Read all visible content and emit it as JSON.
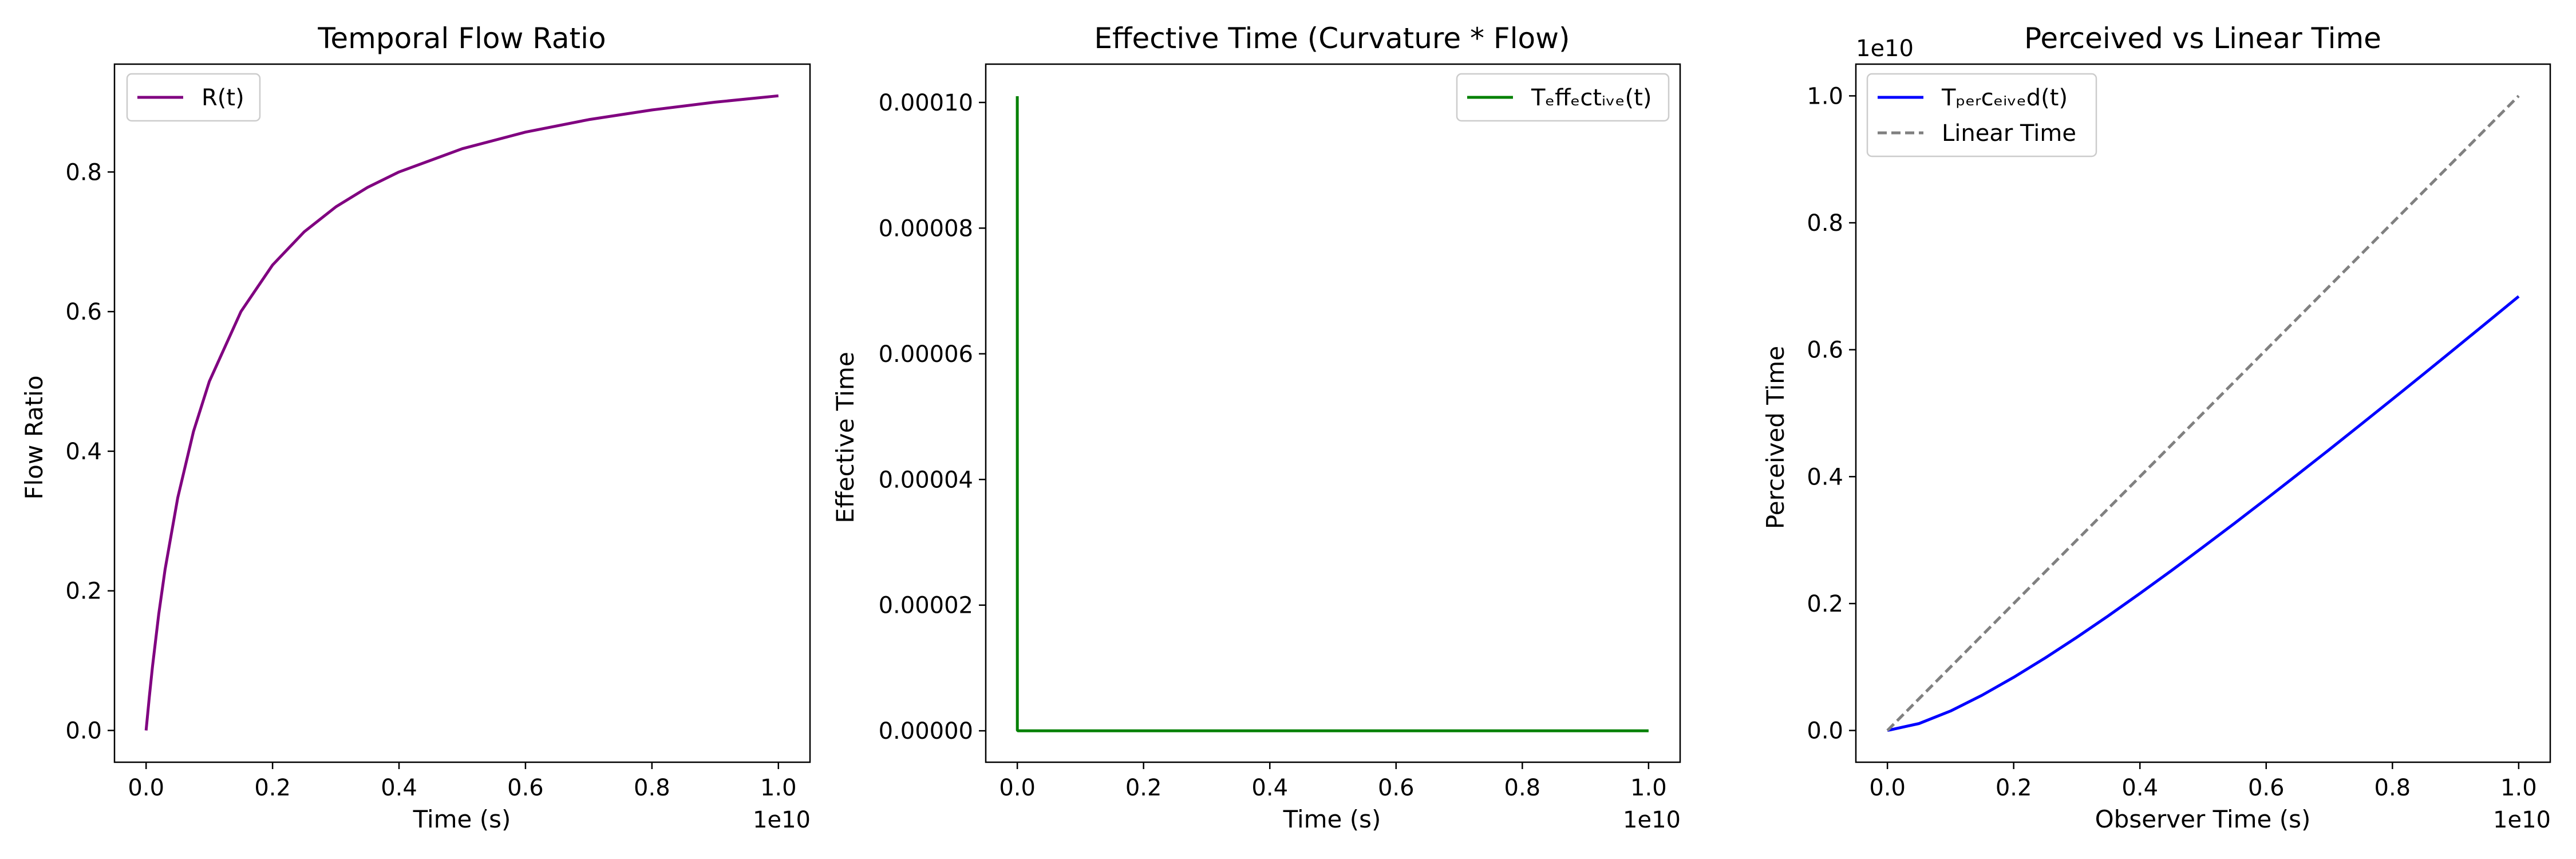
{
  "chart_data": [
    {
      "type": "line",
      "title": "Temporal Flow Ratio",
      "xlabel": "Time (s)",
      "ylabel": "Flow Ratio",
      "x_offset_label": "1e10",
      "y_offset_label": "",
      "xlim": [
        -0.05,
        1.05
      ],
      "ylim": [
        -0.0455,
        0.9545
      ],
      "xticks": [
        0.0,
        0.2,
        0.4,
        0.6,
        0.8,
        1.0
      ],
      "xtick_labels": [
        "0.0",
        "0.2",
        "0.4",
        "0.6",
        "0.8",
        "1.0"
      ],
      "yticks": [
        0.0,
        0.2,
        0.4,
        0.6,
        0.8
      ],
      "ytick_labels": [
        "0.0",
        "0.2",
        "0.4",
        "0.6",
        "0.8"
      ],
      "legend_position": "upper left",
      "series": [
        {
          "name": "R(t)",
          "color": "#800080",
          "dash": "",
          "x": [
            0.0,
            0.005,
            0.01,
            0.02,
            0.03,
            0.05,
            0.075,
            0.1,
            0.15,
            0.2,
            0.25,
            0.3,
            0.35,
            0.4,
            0.5,
            0.6,
            0.7,
            0.8,
            0.9,
            1.0
          ],
          "y": [
            0.0,
            0.0476,
            0.0909,
            0.1667,
            0.2308,
            0.3333,
            0.4286,
            0.5,
            0.6,
            0.6667,
            0.7143,
            0.75,
            0.7778,
            0.8,
            0.8333,
            0.8571,
            0.875,
            0.8889,
            0.9,
            0.9091
          ]
        }
      ]
    },
    {
      "type": "line",
      "title": "Effective Time (Curvature * Flow)",
      "xlabel": "Time (s)",
      "ylabel": "Effective Time",
      "x_offset_label": "1e10",
      "y_offset_label": "",
      "xlim": [
        -0.05,
        1.05
      ],
      "ylim": [
        -5e-06,
        0.0001061
      ],
      "xticks": [
        0.0,
        0.2,
        0.4,
        0.6,
        0.8,
        1.0
      ],
      "xtick_labels": [
        "0.0",
        "0.2",
        "0.4",
        "0.6",
        "0.8",
        "1.0"
      ],
      "yticks": [
        0.0,
        2e-05,
        4e-05,
        6e-05,
        8e-05,
        0.0001
      ],
      "ytick_labels": [
        "0.00000",
        "0.00002",
        "0.00004",
        "0.00006",
        "0.00008",
        "0.00010"
      ],
      "legend_position": "upper right",
      "series": [
        {
          "name": "Tₑffₑctᵢᵥₑ(t)",
          "color": "#008000",
          "dash": "",
          "x": [
            0.0,
            0.0001,
            0.001,
            0.01,
            0.1,
            0.5,
            1.0
          ],
          "y": [
            0.000101,
            1e-07,
            0.0,
            0.0,
            0.0,
            0.0,
            0.0
          ]
        }
      ]
    },
    {
      "type": "line",
      "title": "Perceived vs Linear Time",
      "xlabel": "Observer Time (s)",
      "ylabel": "Perceived Time",
      "x_offset_label": "1e10",
      "y_offset_label": "1e10",
      "xlim": [
        -0.05,
        1.05
      ],
      "ylim": [
        -0.05,
        1.05
      ],
      "xticks": [
        0.0,
        0.2,
        0.4,
        0.6,
        0.8,
        1.0
      ],
      "xtick_labels": [
        "0.0",
        "0.2",
        "0.4",
        "0.6",
        "0.8",
        "1.0"
      ],
      "yticks": [
        0.0,
        0.2,
        0.4,
        0.6,
        0.8,
        1.0
      ],
      "ytick_labels": [
        "0.0",
        "0.2",
        "0.4",
        "0.6",
        "0.8",
        "1.0"
      ],
      "legend_position": "upper left",
      "series": [
        {
          "name": "Tₚₑᵣcₑᵢᵥₑd(t)",
          "color": "#0000ff",
          "dash": "",
          "x": [
            0.0,
            0.05,
            0.1,
            0.15,
            0.2,
            0.25,
            0.3,
            0.35,
            0.4,
            0.45,
            0.5,
            0.55,
            0.6,
            0.65,
            0.7,
            0.75,
            0.8,
            0.85,
            0.9,
            0.95,
            1.0
          ],
          "y": [
            0.0,
            0.0109,
            0.0307,
            0.0556,
            0.0838,
            0.1143,
            0.1468,
            0.1807,
            0.2159,
            0.252,
            0.289,
            0.3266,
            0.3648,
            0.4035,
            0.4426,
            0.4822,
            0.522,
            0.5622,
            0.6026,
            0.6432,
            0.684
          ]
        },
        {
          "name": "Linear Time",
          "color": "#808080",
          "dash": "16,8",
          "x": [
            0.0,
            1.0
          ],
          "y": [
            0.0,
            1.0
          ]
        }
      ]
    }
  ]
}
